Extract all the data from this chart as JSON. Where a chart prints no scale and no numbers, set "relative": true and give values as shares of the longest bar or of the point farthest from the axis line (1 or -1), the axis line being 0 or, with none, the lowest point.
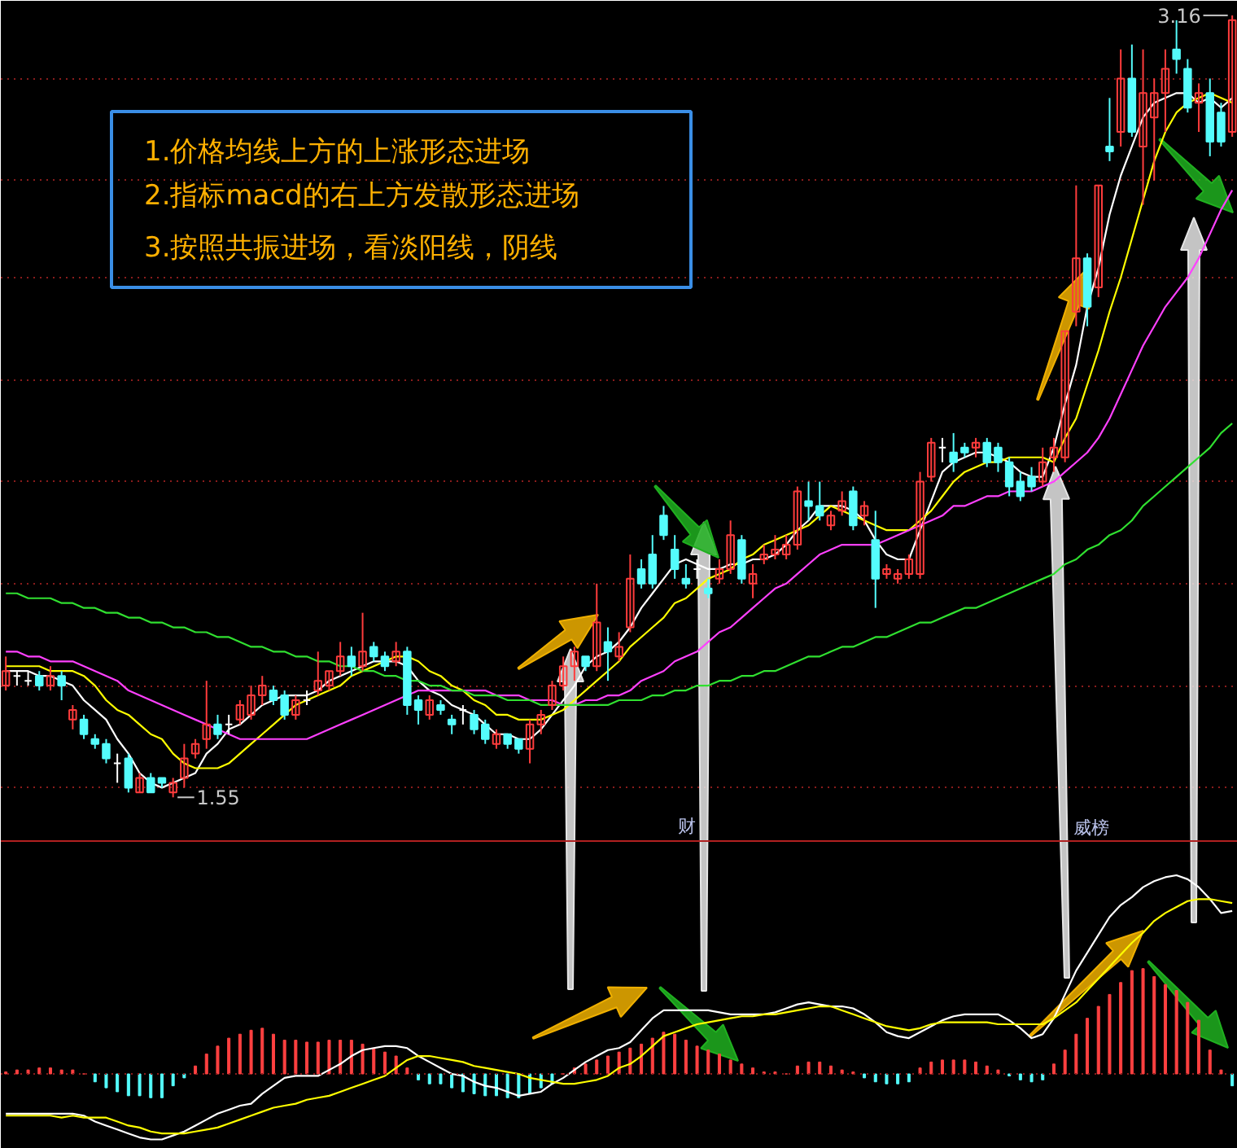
{
  "chart_data": [
    {
      "type": "candlestick",
      "categories": [
        null,
        null,
        null,
        null,
        null,
        null,
        null,
        null,
        null,
        null,
        null,
        null,
        null,
        null,
        null,
        null,
        null,
        null,
        null,
        null,
        null,
        null,
        null,
        null,
        null,
        null,
        null,
        null,
        null,
        null,
        null,
        null,
        null,
        null,
        null,
        null,
        null,
        null,
        null,
        null,
        null,
        null,
        null,
        null,
        null,
        null,
        null,
        null,
        null,
        null,
        null,
        null,
        null,
        null,
        null,
        null,
        null,
        null,
        null,
        null,
        null,
        null,
        null,
        null,
        null,
        null,
        null,
        null,
        null,
        null,
        null,
        null,
        null,
        null,
        null,
        null,
        null,
        null,
        null,
        null,
        null,
        null,
        null,
        null,
        null,
        null,
        null,
        null,
        null,
        null,
        null,
        null,
        null,
        null,
        null,
        null,
        null,
        null,
        null,
        null,
        null,
        null,
        null,
        null,
        null,
        null,
        null,
        null,
        null,
        null,
        null
      ],
      "ohlc": [
        [
          1.78,
          1.84,
          1.77,
          1.81
        ],
        [
          1.8,
          1.81,
          1.78,
          1.8
        ],
        [
          1.79,
          1.81,
          1.78,
          1.79
        ],
        [
          1.8,
          1.81,
          1.77,
          1.78
        ],
        [
          1.78,
          1.82,
          1.77,
          1.8
        ],
        [
          1.8,
          1.81,
          1.75,
          1.78
        ],
        [
          1.71,
          1.74,
          1.69,
          1.73
        ],
        [
          1.71,
          1.72,
          1.67,
          1.68
        ],
        [
          1.67,
          1.68,
          1.65,
          1.66
        ],
        [
          1.66,
          1.67,
          1.62,
          1.63
        ],
        [
          1.62,
          1.64,
          1.58,
          1.62
        ],
        [
          1.63,
          1.64,
          1.56,
          1.57
        ],
        [
          1.56,
          1.6,
          1.56,
          1.59
        ],
        [
          1.59,
          1.6,
          1.56,
          1.56
        ],
        [
          1.59,
          1.59,
          1.57,
          1.58
        ],
        [
          1.56,
          1.59,
          1.55,
          1.58
        ],
        [
          1.59,
          1.66,
          1.57,
          1.63
        ],
        [
          1.64,
          1.67,
          1.63,
          1.66
        ],
        [
          1.67,
          1.79,
          1.65,
          1.7
        ],
        [
          1.7,
          1.72,
          1.67,
          1.68
        ],
        [
          1.7,
          1.72,
          1.68,
          1.7
        ],
        [
          1.71,
          1.75,
          1.7,
          1.74
        ],
        [
          1.72,
          1.78,
          1.71,
          1.76
        ],
        [
          1.76,
          1.8,
          1.74,
          1.78
        ],
        [
          1.77,
          1.78,
          1.74,
          1.75
        ],
        [
          1.76,
          1.77,
          1.71,
          1.72
        ],
        [
          1.72,
          1.76,
          1.71,
          1.75
        ],
        [
          1.75,
          1.77,
          1.74,
          1.75
        ],
        [
          1.77,
          1.85,
          1.76,
          1.79
        ],
        [
          1.78,
          1.81,
          1.77,
          1.81
        ],
        [
          1.81,
          1.87,
          1.8,
          1.84
        ],
        [
          1.84,
          1.86,
          1.8,
          1.82
        ],
        [
          1.82,
          1.93,
          1.81,
          1.85
        ],
        [
          1.86,
          1.87,
          1.83,
          1.84
        ],
        [
          1.84,
          1.85,
          1.81,
          1.82
        ],
        [
          1.83,
          1.87,
          1.82,
          1.85
        ],
        [
          1.85,
          1.86,
          1.72,
          1.74
        ],
        [
          1.75,
          1.76,
          1.7,
          1.73
        ],
        [
          1.72,
          1.76,
          1.71,
          1.75
        ],
        [
          1.74,
          1.75,
          1.72,
          1.73
        ],
        [
          1.71,
          1.72,
          1.68,
          1.7
        ],
        [
          1.73,
          1.74,
          1.7,
          1.73
        ],
        [
          1.72,
          1.73,
          1.68,
          1.69
        ],
        [
          1.7,
          1.71,
          1.66,
          1.67
        ],
        [
          1.66,
          1.69,
          1.65,
          1.68
        ],
        [
          1.68,
          1.68,
          1.65,
          1.66
        ],
        [
          1.67,
          1.67,
          1.64,
          1.65
        ],
        [
          1.65,
          1.71,
          1.62,
          1.7
        ],
        [
          1.7,
          1.73,
          1.68,
          1.72
        ],
        [
          1.74,
          1.79,
          1.73,
          1.78
        ],
        [
          1.78,
          1.84,
          1.77,
          1.82
        ],
        [
          1.82,
          1.86,
          1.79,
          1.85
        ],
        [
          1.84,
          1.84,
          1.81,
          1.82
        ],
        [
          1.82,
          1.99,
          1.81,
          1.91
        ],
        [
          1.87,
          1.9,
          1.79,
          1.85
        ],
        [
          1.84,
          1.89,
          1.83,
          1.86
        ],
        [
          1.9,
          2.05,
          1.89,
          2.0
        ],
        [
          2.02,
          2.04,
          1.98,
          1.99
        ],
        [
          2.05,
          2.09,
          1.98,
          1.99
        ],
        [
          2.13,
          2.15,
          2.08,
          2.09
        ],
        [
          2.06,
          2.09,
          2.0,
          2.02
        ],
        [
          2.0,
          2.03,
          1.98,
          1.99
        ],
        [
          2.02,
          2.04,
          2.0,
          2.02
        ],
        [
          1.98,
          2.0,
          1.96,
          1.97
        ],
        [
          2.0,
          2.04,
          1.99,
          2.02
        ],
        [
          2.02,
          2.12,
          2.01,
          2.09
        ],
        [
          2.08,
          2.09,
          1.99,
          2.0
        ],
        [
          1.99,
          2.03,
          1.96,
          2.01
        ],
        [
          2.04,
          2.07,
          2.03,
          2.05
        ],
        [
          2.05,
          2.09,
          2.04,
          2.06
        ],
        [
          2.05,
          2.09,
          2.04,
          2.07
        ],
        [
          2.07,
          2.19,
          2.06,
          2.18
        ],
        [
          2.16,
          2.2,
          2.12,
          2.15
        ],
        [
          2.15,
          2.2,
          2.12,
          2.13
        ],
        [
          2.11,
          2.14,
          2.1,
          2.13
        ],
        [
          2.14,
          2.18,
          2.13,
          2.16
        ],
        [
          2.18,
          2.19,
          2.1,
          2.11
        ],
        [
          2.13,
          2.16,
          2.11,
          2.15
        ],
        [
          2.08,
          2.14,
          1.94,
          2.0
        ],
        [
          2.01,
          2.03,
          2.0,
          2.02
        ],
        [
          2.0,
          2.02,
          1.99,
          2.01
        ],
        [
          2.01,
          2.05,
          2.0,
          2.04
        ],
        [
          2.01,
          2.22,
          2.0,
          2.2
        ],
        [
          2.21,
          2.29,
          2.2,
          2.28
        ],
        [
          2.27,
          2.29,
          2.24,
          2.27
        ],
        [
          2.26,
          2.3,
          2.22,
          2.24
        ],
        [
          2.27,
          2.28,
          2.25,
          2.26
        ],
        [
          2.27,
          2.29,
          2.25,
          2.28
        ],
        [
          2.28,
          2.29,
          2.23,
          2.24
        ],
        [
          2.27,
          2.28,
          2.22,
          2.24
        ],
        [
          2.24,
          2.25,
          2.17,
          2.19
        ],
        [
          2.2,
          2.22,
          2.16,
          2.17
        ],
        [
          2.21,
          2.23,
          2.18,
          2.19
        ],
        [
          2.2,
          2.27,
          2.19,
          2.24
        ],
        [
          2.25,
          2.29,
          2.22,
          2.27
        ],
        [
          2.25,
          2.51,
          2.24,
          2.51
        ],
        [
          2.55,
          2.81,
          2.52,
          2.66
        ],
        [
          2.66,
          2.67,
          2.52,
          2.56
        ],
        [
          2.6,
          2.81,
          2.58,
          2.81
        ],
        [
          2.89,
          2.99,
          2.86,
          2.88
        ],
        [
          2.92,
          3.09,
          2.89,
          3.03
        ],
        [
          3.03,
          3.1,
          2.91,
          2.92
        ],
        [
          2.89,
          3.09,
          2.77,
          3.0
        ],
        [
          2.95,
          3.03,
          2.82,
          3.0
        ],
        [
          3.0,
          3.09,
          2.92,
          3.05
        ],
        [
          3.09,
          3.15,
          3.04,
          3.07
        ],
        [
          3.05,
          3.07,
          2.96,
          2.97
        ],
        [
          2.98,
          3.02,
          2.92,
          3.0
        ],
        [
          3.0,
          3.03,
          2.87,
          2.9
        ],
        [
          2.96,
          2.98,
          2.89,
          2.9
        ],
        [
          2.92,
          3.16,
          2.91,
          3.15
        ]
      ],
      "colors": [
        "#ff3c3c",
        "#ffffff",
        "#ffffff",
        "#54fcfc",
        "#ff3c3c",
        "#54fcfc",
        "#ff3c3c",
        "#54fcfc",
        "#54fcfc",
        "#54fcfc",
        "#ffffff",
        "#54fcfc",
        "#ff3c3c",
        "#54fcfc",
        "#54fcfc",
        "#ff3c3c",
        "#ff3c3c",
        "#ff3c3c",
        "#ff3c3c",
        "#54fcfc",
        "#ffffff",
        "#ff3c3c",
        "#ff3c3c",
        "#ff3c3c",
        "#54fcfc",
        "#54fcfc",
        "#ff3c3c",
        "#ffffff",
        "#ff3c3c",
        "#ff3c3c",
        "#ff3c3c",
        "#54fcfc",
        "#ff3c3c",
        "#54fcfc",
        "#54fcfc",
        "#ff3c3c",
        "#54fcfc",
        "#54fcfc",
        "#ff3c3c",
        "#54fcfc",
        "#54fcfc",
        "#ffffff",
        "#54fcfc",
        "#54fcfc",
        "#ff3c3c",
        "#54fcfc",
        "#54fcfc",
        "#ff3c3c",
        "#ff3c3c",
        "#ff3c3c",
        "#ff3c3c",
        "#ff3c3c",
        "#54fcfc",
        "#ff3c3c",
        "#54fcfc",
        "#ff3c3c",
        "#ff3c3c",
        "#54fcfc",
        "#54fcfc",
        "#54fcfc",
        "#54fcfc",
        "#54fcfc",
        "#ffffff",
        "#54fcfc",
        "#ff3c3c",
        "#ff3c3c",
        "#54fcfc",
        "#ff3c3c",
        "#ff3c3c",
        "#ff3c3c",
        "#ff3c3c",
        "#ff3c3c",
        "#54fcfc",
        "#54fcfc",
        "#ff3c3c",
        "#ff3c3c",
        "#54fcfc",
        "#ff3c3c",
        "#54fcfc",
        "#ff3c3c",
        "#ff3c3c",
        "#ff3c3c",
        "#ff3c3c",
        "#ff3c3c",
        "#ffffff",
        "#54fcfc",
        "#54fcfc",
        "#ff3c3c",
        "#54fcfc",
        "#54fcfc",
        "#54fcfc",
        "#54fcfc",
        "#54fcfc",
        "#ff3c3c",
        "#ff3c3c",
        "#ff3c3c",
        "#ff3c3c",
        "#54fcfc",
        "#ff3c3c",
        "#54fcfc",
        "#ff3c3c",
        "#54fcfc",
        "#ff3c3c",
        "#ff3c3c",
        "#ff3c3c",
        "#54fcfc",
        "#54fcfc",
        "#ff3c3c",
        "#54fcfc",
        "#54fcfc",
        "#ff3c3c"
      ],
      "series": [
        {
          "type": "line",
          "color": "#ffffff",
          "values": [
            1.81,
            1.81,
            1.81,
            1.8,
            1.8,
            1.79,
            1.78,
            1.75,
            1.73,
            1.71,
            1.67,
            1.64,
            1.6,
            1.58,
            1.57,
            1.58,
            1.59,
            1.6,
            1.64,
            1.66,
            1.69,
            1.7,
            1.72,
            1.74,
            1.75,
            1.76,
            1.76,
            1.76,
            1.77,
            1.79,
            1.8,
            1.81,
            1.82,
            1.83,
            1.83,
            1.83,
            1.82,
            1.79,
            1.77,
            1.76,
            1.74,
            1.73,
            1.72,
            1.7,
            1.68,
            1.68,
            1.67,
            1.67,
            1.69,
            1.72,
            1.75,
            1.78,
            1.82,
            1.84,
            1.85,
            1.87,
            1.9,
            1.94,
            1.97,
            2.0,
            2.03,
            2.04,
            2.03,
            2.02,
            2.02,
            2.03,
            2.03,
            2.04,
            2.04,
            2.05,
            2.07,
            2.1,
            2.12,
            2.15,
            2.15,
            2.15,
            2.14,
            2.12,
            2.08,
            2.05,
            2.04,
            2.04,
            2.1,
            2.16,
            2.22,
            2.24,
            2.25,
            2.26,
            2.26,
            2.25,
            2.24,
            2.22,
            2.21,
            2.21,
            2.27,
            2.36,
            2.44,
            2.56,
            2.64,
            2.75,
            2.83,
            2.89,
            2.95,
            2.98,
            2.99,
            3.0,
            3.0,
            2.98,
            2.99,
            2.97,
            2.99
          ]
        },
        {
          "type": "line",
          "color": "#ffff00",
          "values": [
            1.82,
            1.82,
            1.82,
            1.82,
            1.81,
            1.81,
            1.81,
            1.8,
            1.78,
            1.75,
            1.73,
            1.72,
            1.7,
            1.68,
            1.67,
            1.64,
            1.62,
            1.61,
            1.61,
            1.61,
            1.62,
            1.64,
            1.66,
            1.68,
            1.7,
            1.72,
            1.74,
            1.75,
            1.76,
            1.77,
            1.78,
            1.8,
            1.81,
            1.82,
            1.83,
            1.84,
            1.84,
            1.83,
            1.81,
            1.8,
            1.78,
            1.77,
            1.75,
            1.74,
            1.72,
            1.72,
            1.71,
            1.71,
            1.71,
            1.72,
            1.73,
            1.75,
            1.77,
            1.79,
            1.81,
            1.83,
            1.86,
            1.88,
            1.9,
            1.92,
            1.95,
            1.96,
            1.98,
            2.0,
            2.01,
            2.02,
            2.04,
            2.05,
            2.07,
            2.08,
            2.09,
            2.1,
            2.11,
            2.13,
            2.15,
            2.14,
            2.13,
            2.12,
            2.11,
            2.1,
            2.1,
            2.1,
            2.12,
            2.14,
            2.17,
            2.2,
            2.22,
            2.23,
            2.24,
            2.24,
            2.25,
            2.25,
            2.25,
            2.25,
            2.24,
            2.29,
            2.33,
            2.4,
            2.47,
            2.55,
            2.62,
            2.7,
            2.78,
            2.86,
            2.92,
            2.96,
            2.98,
            2.99,
            3.0,
            2.99,
            2.98
          ]
        },
        {
          "type": "line",
          "color": "#ff40ff",
          "values": [
            1.85,
            1.85,
            1.84,
            1.84,
            1.83,
            1.83,
            1.83,
            1.82,
            1.81,
            1.8,
            1.79,
            1.77,
            1.76,
            1.75,
            1.74,
            1.73,
            1.72,
            1.71,
            1.7,
            1.69,
            1.68,
            1.67,
            1.67,
            1.67,
            1.67,
            1.67,
            1.67,
            1.67,
            1.68,
            1.69,
            1.7,
            1.71,
            1.72,
            1.73,
            1.74,
            1.75,
            1.76,
            1.77,
            1.77,
            1.77,
            1.77,
            1.77,
            1.77,
            1.77,
            1.76,
            1.76,
            1.76,
            1.75,
            1.75,
            1.75,
            1.74,
            1.74,
            1.75,
            1.75,
            1.76,
            1.76,
            1.77,
            1.79,
            1.8,
            1.81,
            1.83,
            1.84,
            1.85,
            1.87,
            1.89,
            1.9,
            1.92,
            1.94,
            1.96,
            1.98,
            1.99,
            2.01,
            2.03,
            2.05,
            2.06,
            2.07,
            2.07,
            2.07,
            2.07,
            2.08,
            2.09,
            2.1,
            2.11,
            2.12,
            2.13,
            2.15,
            2.15,
            2.16,
            2.17,
            2.17,
            2.18,
            2.18,
            2.18,
            2.19,
            2.2,
            2.22,
            2.24,
            2.26,
            2.29,
            2.33,
            2.38,
            2.43,
            2.48,
            2.52,
            2.56,
            2.59,
            2.62,
            2.66,
            2.71,
            2.76,
            2.8
          ]
        },
        {
          "type": "line",
          "color": "#30e030",
          "values": [
            1.97,
            1.97,
            1.96,
            1.96,
            1.96,
            1.95,
            1.95,
            1.94,
            1.94,
            1.93,
            1.93,
            1.92,
            1.92,
            1.91,
            1.91,
            1.9,
            1.9,
            1.89,
            1.89,
            1.88,
            1.88,
            1.87,
            1.86,
            1.86,
            1.85,
            1.85,
            1.84,
            1.84,
            1.83,
            1.83,
            1.82,
            1.82,
            1.81,
            1.81,
            1.8,
            1.8,
            1.79,
            1.79,
            1.78,
            1.78,
            1.77,
            1.77,
            1.76,
            1.76,
            1.76,
            1.75,
            1.75,
            1.75,
            1.74,
            1.74,
            1.74,
            1.74,
            1.74,
            1.74,
            1.74,
            1.75,
            1.75,
            1.75,
            1.76,
            1.76,
            1.77,
            1.77,
            1.78,
            1.78,
            1.79,
            1.79,
            1.8,
            1.8,
            1.81,
            1.81,
            1.82,
            1.83,
            1.84,
            1.84,
            1.85,
            1.86,
            1.86,
            1.87,
            1.88,
            1.88,
            1.89,
            1.9,
            1.91,
            1.91,
            1.92,
            1.93,
            1.94,
            1.94,
            1.95,
            1.96,
            1.97,
            1.98,
            1.99,
            2.0,
            2.01,
            2.03,
            2.04,
            2.06,
            2.07,
            2.09,
            2.1,
            2.12,
            2.15,
            2.17,
            2.19,
            2.21,
            2.23,
            2.25,
            2.27,
            2.3,
            2.32
          ]
        }
      ],
      "ylim": [
        1.46,
        3.19
      ],
      "yticks": [
        {
          "value": 3.03,
          "label": null
        },
        {
          "value": 2.82,
          "label": null
        },
        {
          "value": 2.62,
          "label": null
        },
        {
          "value": 2.41,
          "label": null
        },
        {
          "value": 2.2,
          "label": null
        },
        {
          "value": 1.99,
          "label": null
        },
        {
          "value": 1.78,
          "label": null
        },
        {
          "value": 1.57,
          "label": null
        }
      ],
      "grid": "y",
      "tick_labels": false,
      "annotations": [
        "1.价格均线上方的上涨形态进场",
        "2.指标macd的右上方发散形态进场",
        "3.按照共振进场，看淡阳线，阴线",
        "财",
        "威榜",
        "1.55",
        "3.16"
      ]
    },
    {
      "type": "bar",
      "relative": true,
      "tick_labels": false,
      "ref_lines": [
        {
          "axis": "y",
          "value": 0,
          "color": "#8a1c1c",
          "line_style": "dotted"
        }
      ],
      "categories": [
        null,
        null,
        null,
        null,
        null,
        null,
        null,
        null,
        null,
        null,
        null,
        null,
        null,
        null,
        null,
        null,
        null,
        null,
        null,
        null,
        null,
        null,
        null,
        null,
        null,
        null,
        null,
        null,
        null,
        null,
        null,
        null,
        null,
        null,
        null,
        null,
        null,
        null,
        null,
        null,
        null,
        null,
        null,
        null,
        null,
        null,
        null,
        null,
        null,
        null,
        null,
        null,
        null,
        null,
        null,
        null,
        null,
        null,
        null,
        null,
        null,
        null,
        null,
        null,
        null,
        null,
        null,
        null,
        null,
        null,
        null,
        null,
        null,
        null,
        null,
        null,
        null,
        null,
        null,
        null,
        null,
        null,
        null,
        null,
        null,
        null,
        null,
        null,
        null,
        null,
        null,
        null,
        null,
        null,
        null,
        null,
        null,
        null,
        null,
        null,
        null,
        null,
        null,
        null,
        null,
        null,
        null,
        null,
        null,
        null,
        null
      ],
      "series": [
        {
          "type": "bar",
          "values": [
            0.01,
            0.02,
            0.02,
            0.03,
            0.03,
            0.02,
            0.02,
            0.0,
            -0.04,
            -0.07,
            -0.09,
            -0.11,
            -0.11,
            -0.12,
            -0.12,
            -0.06,
            -0.02,
            0.04,
            0.1,
            0.14,
            0.18,
            0.2,
            0.22,
            0.23,
            0.2,
            0.17,
            0.17,
            0.16,
            0.16,
            0.17,
            0.17,
            0.17,
            0.15,
            0.13,
            0.11,
            0.09,
            0.03,
            -0.03,
            -0.05,
            -0.05,
            -0.07,
            -0.09,
            -0.1,
            -0.11,
            -0.11,
            -0.12,
            -0.12,
            -0.1,
            -0.07,
            -0.05,
            0.0,
            0.03,
            0.05,
            0.07,
            0.09,
            0.11,
            0.13,
            0.15,
            0.18,
            0.21,
            0.2,
            0.17,
            0.14,
            0.12,
            0.1,
            0.07,
            0.05,
            0.03,
            0.01,
            0.01,
            0.0,
            0.04,
            0.06,
            0.06,
            0.04,
            0.02,
            0.01,
            -0.02,
            -0.04,
            -0.05,
            -0.05,
            -0.04,
            0.03,
            0.06,
            0.07,
            0.07,
            0.07,
            0.06,
            0.04,
            0.02,
            -0.01,
            -0.03,
            -0.04,
            -0.03,
            0.05,
            0.12,
            0.2,
            0.28,
            0.34,
            0.4,
            0.46,
            0.52,
            0.53,
            0.49,
            0.45,
            0.42,
            0.36,
            0.27,
            0.12,
            0.02,
            -0.06
          ],
          "colors": [
            "#ff4040",
            "#ff4040",
            "#ff4040",
            "#ff4040",
            "#ff4040",
            "#ff4040",
            "#ff4040",
            "#ff4040",
            "#54fcfc",
            "#54fcfc",
            "#54fcfc",
            "#54fcfc",
            "#54fcfc",
            "#54fcfc",
            "#54fcfc",
            "#54fcfc",
            "#54fcfc",
            "#ff4040",
            "#ff4040",
            "#ff4040",
            "#ff4040",
            "#ff4040",
            "#ff4040",
            "#ff4040",
            "#ff4040",
            "#ff4040",
            "#ff4040",
            "#ff4040",
            "#ff4040",
            "#ff4040",
            "#ff4040",
            "#ff4040",
            "#ff4040",
            "#ff4040",
            "#ff4040",
            "#ff4040",
            "#ff4040",
            "#54fcfc",
            "#54fcfc",
            "#54fcfc",
            "#54fcfc",
            "#54fcfc",
            "#54fcfc",
            "#54fcfc",
            "#54fcfc",
            "#54fcfc",
            "#54fcfc",
            "#54fcfc",
            "#54fcfc",
            "#54fcfc",
            "#ff4040",
            "#ff4040",
            "#ff4040",
            "#ff4040",
            "#ff4040",
            "#ff4040",
            "#ff4040",
            "#ff4040",
            "#ff4040",
            "#ff4040",
            "#ff4040",
            "#ff4040",
            "#ff4040",
            "#ff4040",
            "#ff4040",
            "#ff4040",
            "#ff4040",
            "#ff4040",
            "#ff4040",
            "#ff4040",
            "#ff4040",
            "#ff4040",
            "#ff4040",
            "#ff4040",
            "#ff4040",
            "#ff4040",
            "#ff4040",
            "#54fcfc",
            "#54fcfc",
            "#54fcfc",
            "#54fcfc",
            "#54fcfc",
            "#ff4040",
            "#ff4040",
            "#ff4040",
            "#ff4040",
            "#ff4040",
            "#ff4040",
            "#ff4040",
            "#ff4040",
            "#54fcfc",
            "#54fcfc",
            "#54fcfc",
            "#54fcfc",
            "#ff4040",
            "#ff4040",
            "#ff4040",
            "#ff4040",
            "#ff4040",
            "#ff4040",
            "#ff4040",
            "#ff4040",
            "#ff4040",
            "#ff4040",
            "#ff4040",
            "#ff4040",
            "#ff4040",
            "#ff4040",
            "#ff4040",
            "#ff4040",
            "#54fcfc"
          ]
        },
        {
          "type": "line",
          "color": "#ffffff",
          "values": [
            -0.2,
            -0.2,
            -0.2,
            -0.2,
            -0.2,
            -0.2,
            -0.2,
            -0.21,
            -0.24,
            -0.26,
            -0.28,
            -0.3,
            -0.32,
            -0.33,
            -0.33,
            -0.31,
            -0.29,
            -0.26,
            -0.23,
            -0.2,
            -0.18,
            -0.16,
            -0.15,
            -0.1,
            -0.06,
            -0.02,
            -0.01,
            -0.01,
            -0.01,
            0.02,
            0.05,
            0.09,
            0.12,
            0.13,
            0.14,
            0.14,
            0.13,
            0.09,
            0.06,
            0.03,
            0.0,
            -0.01,
            -0.04,
            -0.06,
            -0.07,
            -0.09,
            -0.11,
            -0.1,
            -0.09,
            -0.05,
            -0.02,
            0.02,
            0.06,
            0.09,
            0.12,
            0.13,
            0.16,
            0.22,
            0.28,
            0.32,
            0.32,
            0.32,
            0.32,
            0.32,
            0.31,
            0.3,
            0.3,
            0.3,
            0.3,
            0.31,
            0.33,
            0.35,
            0.36,
            0.35,
            0.34,
            0.34,
            0.33,
            0.3,
            0.26,
            0.21,
            0.19,
            0.18,
            0.21,
            0.24,
            0.27,
            0.29,
            0.3,
            0.3,
            0.3,
            0.3,
            0.27,
            0.23,
            0.18,
            0.2,
            0.28,
            0.4,
            0.52,
            0.61,
            0.7,
            0.79,
            0.85,
            0.89,
            0.94,
            0.97,
            0.99,
            1.0,
            0.98,
            0.94,
            0.88,
            0.81,
            0.82
          ]
        },
        {
          "type": "line",
          "color": "#ffff00",
          "values": [
            -0.21,
            -0.21,
            -0.21,
            -0.21,
            -0.21,
            -0.22,
            -0.21,
            -0.22,
            -0.22,
            -0.22,
            -0.24,
            -0.26,
            -0.27,
            -0.29,
            -0.3,
            -0.3,
            -0.3,
            -0.29,
            -0.28,
            -0.27,
            -0.25,
            -0.23,
            -0.21,
            -0.19,
            -0.17,
            -0.16,
            -0.15,
            -0.13,
            -0.12,
            -0.11,
            -0.09,
            -0.07,
            -0.05,
            -0.03,
            -0.01,
            0.03,
            0.07,
            0.09,
            0.09,
            0.08,
            0.07,
            0.06,
            0.04,
            0.03,
            0.02,
            0.01,
            0.0,
            -0.02,
            -0.03,
            -0.04,
            -0.05,
            -0.05,
            -0.04,
            -0.03,
            -0.01,
            0.03,
            0.05,
            0.09,
            0.14,
            0.19,
            0.21,
            0.23,
            0.25,
            0.26,
            0.27,
            0.28,
            0.29,
            0.29,
            0.3,
            0.3,
            0.31,
            0.32,
            0.33,
            0.34,
            0.34,
            0.32,
            0.3,
            0.28,
            0.26,
            0.24,
            0.23,
            0.22,
            0.23,
            0.25,
            0.26,
            0.26,
            0.26,
            0.26,
            0.26,
            0.25,
            0.25,
            0.25,
            0.25,
            0.25,
            0.28,
            0.32,
            0.36,
            0.42,
            0.48,
            0.54,
            0.6,
            0.66,
            0.71,
            0.77,
            0.81,
            0.84,
            0.87,
            0.88,
            0.88,
            0.87,
            0.86
          ]
        }
      ]
    }
  ]
}
